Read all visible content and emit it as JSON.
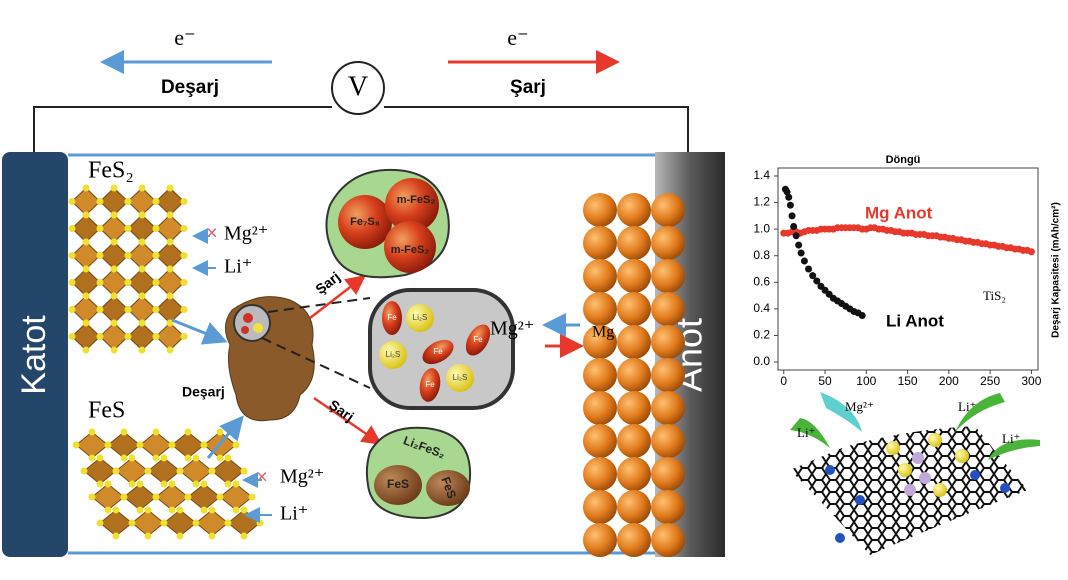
{
  "circuit": {
    "discharge_electron": "e⁻",
    "discharge_label": "Deşarj",
    "charge_electron": "e⁻",
    "charge_label": "Şarj",
    "voltmeter": "V"
  },
  "cathode": {
    "label": "Katot"
  },
  "anode": {
    "label": "Anot",
    "metal": "Mg",
    "ion": "Mg²⁺"
  },
  "fes2": {
    "formula": "FeS₂",
    "blocked_ion": "Mg²⁺",
    "ion": "Li⁺"
  },
  "fes": {
    "formula": "FeS",
    "blocked_ion": "Mg²⁺",
    "ion": "Li⁺"
  },
  "particle": {
    "discharge_label": "Deşarj",
    "charge_up": "Şarj",
    "charge_down": "Şarj"
  },
  "products_top": [
    "Fe₇S₈",
    "m-FeS₂",
    "m-FeS₂"
  ],
  "products_middle": [
    "Li₂S",
    "Li₂S",
    "Li₂S",
    "Fe",
    "Fe",
    "Fe",
    "Fe"
  ],
  "products_bottom": [
    "Li₂FeS₂",
    "FeS",
    "FeS"
  ],
  "inset_chart": {
    "type": "scatter",
    "title": "Döngü",
    "y_label": "Deşarj Kapasitesi (mAh/cm²)",
    "annotation": "TiS₂",
    "xlim": [
      -7,
      308
    ],
    "ylim": [
      -0.06,
      1.46
    ],
    "xticks": [
      0,
      50,
      100,
      150,
      200,
      250,
      300
    ],
    "yticks": [
      {
        "value": 0,
        "label": "0.0"
      },
      0.2,
      0.4,
      0.6,
      0.8,
      {
        "value": 1,
        "label": "1.0"
      },
      1.2,
      1.4
    ],
    "grid": false,
    "series": [
      {
        "name": "Mg Anot",
        "color": "#e8382c",
        "x": [
          0,
          5,
          10,
          15,
          20,
          25,
          30,
          35,
          40,
          45,
          50,
          55,
          60,
          65,
          70,
          75,
          80,
          85,
          90,
          95,
          100,
          105,
          110,
          115,
          120,
          125,
          130,
          135,
          140,
          145,
          150,
          155,
          160,
          165,
          170,
          175,
          180,
          185,
          190,
          195,
          200,
          205,
          210,
          215,
          220,
          225,
          230,
          235,
          240,
          245,
          250,
          255,
          260,
          265,
          270,
          275,
          280,
          285,
          290,
          295,
          300
        ],
        "values": [
          0.97,
          0.97,
          0.98,
          0.98,
          0.97,
          0.98,
          0.99,
          0.99,
          0.99,
          1.0,
          1.0,
          1.0,
          1.0,
          1.01,
          1.01,
          1.01,
          1.01,
          1.01,
          1.01,
          1.0,
          1.0,
          1.01,
          1.01,
          1.0,
          1.0,
          0.99,
          0.99,
          0.98,
          0.98,
          0.97,
          0.97,
          0.97,
          0.96,
          0.96,
          0.96,
          0.95,
          0.95,
          0.95,
          0.94,
          0.94,
          0.93,
          0.93,
          0.92,
          0.92,
          0.91,
          0.91,
          0.9,
          0.9,
          0.89,
          0.89,
          0.88,
          0.88,
          0.87,
          0.87,
          0.86,
          0.86,
          0.85,
          0.85,
          0.84,
          0.84,
          0.83
        ]
      },
      {
        "name": "Li Anot",
        "color": "#111111",
        "x": [
          2,
          4,
          6,
          8,
          10,
          12,
          15,
          18,
          21,
          25,
          30,
          35,
          40,
          45,
          50,
          55,
          60,
          65,
          70,
          75,
          80,
          85,
          90,
          95
        ],
        "values": [
          1.3,
          1.28,
          1.24,
          1.18,
          1.1,
          1.02,
          0.95,
          0.88,
          0.82,
          0.76,
          0.7,
          0.65,
          0.61,
          0.57,
          0.54,
          0.51,
          0.48,
          0.46,
          0.44,
          0.42,
          0.4,
          0.38,
          0.37,
          0.35
        ]
      }
    ]
  },
  "graphene": {
    "ions": [
      "Mg²⁺",
      "Li⁺",
      "Li⁺",
      "Li⁺"
    ]
  }
}
